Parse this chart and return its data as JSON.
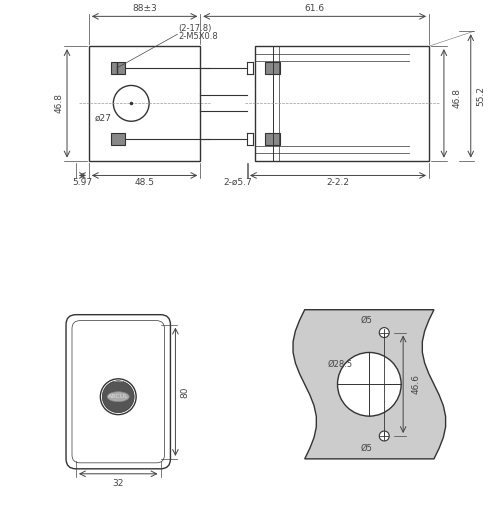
{
  "bg_color": "#ffffff",
  "line_color": "#333333",
  "dim_color": "#444444",
  "gray_fill": "#cccccc",
  "fig_width": 5.0,
  "fig_height": 5.15,
  "annotations": {
    "dim_88": "88±3",
    "dim_61": "61.6",
    "dim_217": "(2-17.8)",
    "dim_m5": "2-M5X0.8",
    "dim_468_left": "46.8",
    "dim_27": "ø27",
    "dim_597": "5.97",
    "dim_485": "48.5",
    "dim_57": "2-ø5.7",
    "dim_22": "2-2.2",
    "dim_468_right": "46.8",
    "dim_552": "55.2",
    "dim_80": "80",
    "dim_32": "32",
    "dim_5_top": "Ø5",
    "dim_285": "Ø28.5",
    "dim_5_bot": "Ø5",
    "dim_466": "46.6"
  }
}
